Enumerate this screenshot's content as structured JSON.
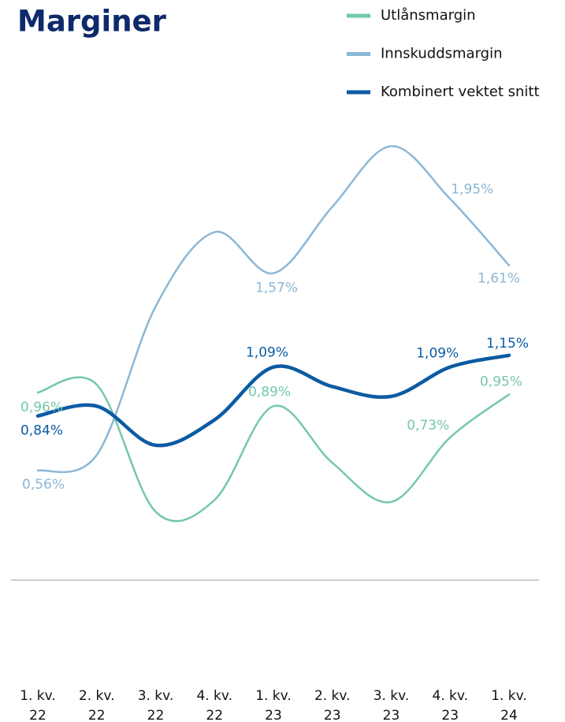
{
  "chart_data": {
    "type": "line",
    "title": "Marginer",
    "categories": [
      [
        "1. kv.",
        "22"
      ],
      [
        "2. kv.",
        "22"
      ],
      [
        "3. kv.",
        "22"
      ],
      [
        "4. kv.",
        "22"
      ],
      [
        "1. kv.",
        "23"
      ],
      [
        "2. kv.",
        "23"
      ],
      [
        "3. kv.",
        "23"
      ],
      [
        "4. kv.",
        "23"
      ],
      [
        "1. kv.",
        "24"
      ]
    ],
    "ylim": [
      0,
      2.5
    ],
    "series": [
      {
        "name": "Utlånsmargin",
        "color": "#74c8a8",
        "values": [
          0.96,
          1.0,
          0.35,
          0.41,
          0.89,
          0.6,
          0.4,
          0.73,
          0.95
        ],
        "value_labels": [
          "0,96%",
          null,
          null,
          null,
          "0,89%",
          null,
          null,
          "0,73%",
          "0,95%"
        ]
      },
      {
        "name": "Innskuddsmargin",
        "color": "#8bb7d6",
        "values": [
          0.56,
          0.64,
          1.4,
          1.78,
          1.57,
          1.91,
          2.22,
          1.95,
          1.61
        ],
        "value_labels": [
          "0,56%",
          null,
          null,
          null,
          "1,57%",
          null,
          null,
          "1,95%",
          "1,61%"
        ]
      },
      {
        "name": "Kombinert vektet snitt",
        "color": "#0b5ba3",
        "values": [
          0.84,
          0.89,
          0.69,
          0.82,
          1.09,
          0.99,
          0.94,
          1.09,
          1.15
        ],
        "value_labels": [
          "0,84%",
          null,
          null,
          null,
          "1,09%",
          null,
          null,
          "1,09%",
          "1,15%"
        ]
      }
    ]
  }
}
